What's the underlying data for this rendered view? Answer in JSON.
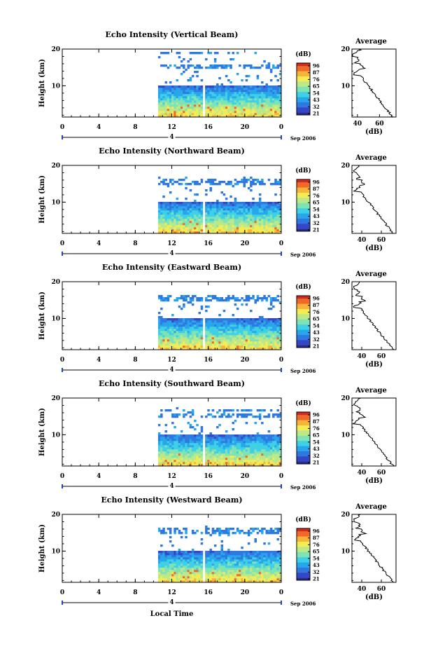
{
  "colors": {
    "scale": [
      "#2b2c8c",
      "#3447c4",
      "#2f78e0",
      "#28a6ec",
      "#3fd0e6",
      "#7fe3b4",
      "#bde88a",
      "#f3ec54",
      "#f7b33a",
      "#ef6a2a",
      "#d22a20"
    ]
  },
  "figure": {
    "xlabel": "Local Time",
    "date_label": "Sep 2006",
    "day_label": "4",
    "x_ticks": [
      "0",
      "4",
      "8",
      "12",
      "16",
      "20",
      "0"
    ],
    "y_ticks": [
      "20",
      "10"
    ],
    "ylabel": "Height (km)",
    "colorbar_title": "(dB)",
    "avg_title": "Average",
    "avg_xlabel": "(dB)",
    "avg_x_ticks": [
      "40",
      "60"
    ]
  },
  "chart_data": [
    {
      "type": "heatmap",
      "title": "Echo Intensity (Vertical Beam)",
      "xlabel": "Local Time",
      "ylabel": "Height (km)",
      "xlim": [
        0,
        24
      ],
      "ylim": [
        1.5,
        20
      ],
      "data_start_hour": 10.5,
      "data_gap_hours": [
        15.3,
        15.6
      ],
      "echo_top_km": 20,
      "colorbar_label": "(dB)",
      "colorbar_ticks": [
        "96",
        "87",
        "76",
        "65",
        "54",
        "43",
        "32",
        "21"
      ],
      "average_profile": {
        "xlim": [
          35,
          75
        ],
        "x_ticks": [
          "40",
          "60"
        ],
        "surface_db": 72,
        "top_db": 36
      }
    },
    {
      "type": "heatmap",
      "title": "Echo Intensity (Northward Beam)",
      "xlabel": "Local Time",
      "ylabel": "Height (km)",
      "xlim": [
        0,
        24
      ],
      "ylim": [
        1.5,
        20
      ],
      "data_start_hour": 10.5,
      "data_gap_hours": [
        15.3,
        15.6
      ],
      "echo_top_km": 17,
      "colorbar_label": "(dB)",
      "colorbar_ticks": [
        "96",
        "87",
        "76",
        "65",
        "54",
        "43",
        "32",
        "21"
      ],
      "average_profile": {
        "xlim": [
          30,
          75
        ],
        "x_ticks": [
          "40",
          "60"
        ],
        "surface_db": 72,
        "top_db": 32
      }
    },
    {
      "type": "heatmap",
      "title": "Echo Intensity (Eastward Beam)",
      "xlabel": "Local Time",
      "ylabel": "Height (km)",
      "xlim": [
        0,
        24
      ],
      "ylim": [
        1.5,
        20
      ],
      "data_start_hour": 10.5,
      "data_gap_hours": [
        15.3,
        15.6
      ],
      "echo_top_km": 16.5,
      "colorbar_label": "(dB)",
      "colorbar_ticks": [
        "96",
        "87",
        "76",
        "65",
        "54",
        "43",
        "32",
        "21"
      ],
      "average_profile": {
        "xlim": [
          30,
          75
        ],
        "x_ticks": [
          "40",
          "60"
        ],
        "surface_db": 72,
        "top_db": 32
      }
    },
    {
      "type": "heatmap",
      "title": "Echo Intensity (Southward Beam)",
      "xlabel": "Local Time",
      "ylabel": "Height (km)",
      "xlim": [
        0,
        24
      ],
      "ylim": [
        1.5,
        20
      ],
      "data_start_hour": 10.5,
      "data_gap_hours": [
        15.3,
        15.6
      ],
      "echo_top_km": 17.5,
      "colorbar_label": "(dB)",
      "colorbar_ticks": [
        "96",
        "87",
        "76",
        "65",
        "54",
        "43",
        "32",
        "21"
      ],
      "average_profile": {
        "xlim": [
          30,
          75
        ],
        "x_ticks": [
          "40",
          "60"
        ],
        "surface_db": 72,
        "top_db": 32
      }
    },
    {
      "type": "heatmap",
      "title": "Echo Intensity (Westward Beam)",
      "xlabel": "Local Time",
      "ylabel": "Height (km)",
      "xlim": [
        0,
        24
      ],
      "ylim": [
        1.5,
        20
      ],
      "data_start_hour": 10.5,
      "data_gap_hours": [
        15.3,
        15.6
      ],
      "echo_top_km": 17,
      "colorbar_label": "(dB)",
      "colorbar_ticks": [
        "96",
        "87",
        "76",
        "65",
        "54",
        "43",
        "32",
        "21"
      ],
      "average_profile": {
        "xlim": [
          30,
          75
        ],
        "x_ticks": [
          "40",
          "60"
        ],
        "surface_db": 72,
        "top_db": 32
      }
    }
  ]
}
